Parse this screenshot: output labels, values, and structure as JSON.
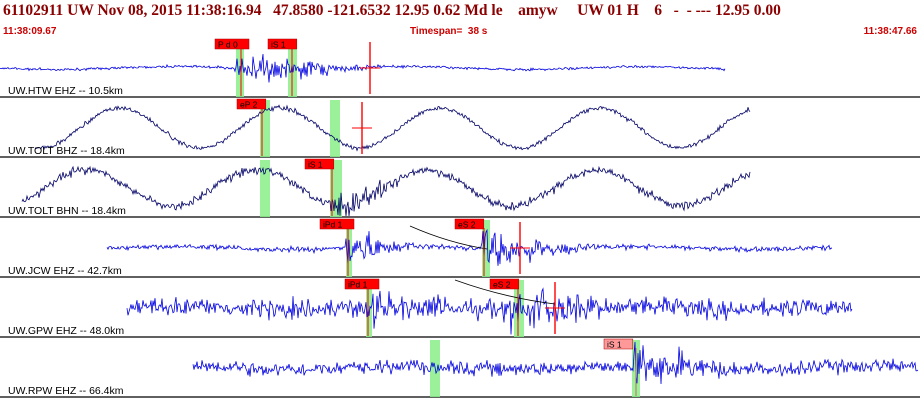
{
  "header": {
    "title": "61102911 UW Nov 08, 2015 11:38:16.94   47.8580 -121.6532 12.95 0.62 Md le    amyw     UW 01 H    6   -  - --- 12.95 0.00",
    "start_time": "11:38:09.67",
    "timespan": "Timespan=  38 s",
    "end_time": "11:38:47.66"
  },
  "colors": {
    "trace": "#0000e0",
    "trace_dark": "#000066",
    "pick_red": "#ff0000",
    "pick_light": "#ff9999",
    "window_green": "#88ee88",
    "title": "#8b0000",
    "subtitle": "#cc0000"
  },
  "traces": [
    {
      "label": "UW.HTW EHZ -- 10.5km",
      "color": "#0000e0",
      "mode": "noise",
      "picks": [
        {
          "label": "P d 0",
          "strong": true
        },
        {
          "label": "iS 1",
          "strong": true
        }
      ]
    },
    {
      "label": "UW.TOLT BHZ -- 18.4km",
      "color": "#000066",
      "mode": "sine",
      "picks": [
        {
          "label": "eP 2",
          "strong": true
        }
      ]
    },
    {
      "label": "UW.TOLT BHN -- 18.4km",
      "color": "#000066",
      "mode": "sine",
      "picks": [
        {
          "label": "iS 1",
          "strong": true
        }
      ]
    },
    {
      "label": "UW.JCW EHZ -- 42.7km",
      "color": "#0000e0",
      "mode": "noise",
      "picks": [
        {
          "label": "iPd 1",
          "strong": true
        },
        {
          "label": "eS 2",
          "strong": true
        }
      ]
    },
    {
      "label": "UW.GPW EHZ -- 48.0km",
      "color": "#0000e0",
      "mode": "noise",
      "picks": [
        {
          "label": "iPd 1",
          "strong": true
        },
        {
          "label": "eS 2",
          "strong": true
        }
      ]
    },
    {
      "label": "UW.RPW EHZ -- 66.4km",
      "color": "#0000e0",
      "mode": "noise",
      "picks": [
        {
          "label": "iS 1",
          "strong": false
        }
      ]
    }
  ]
}
